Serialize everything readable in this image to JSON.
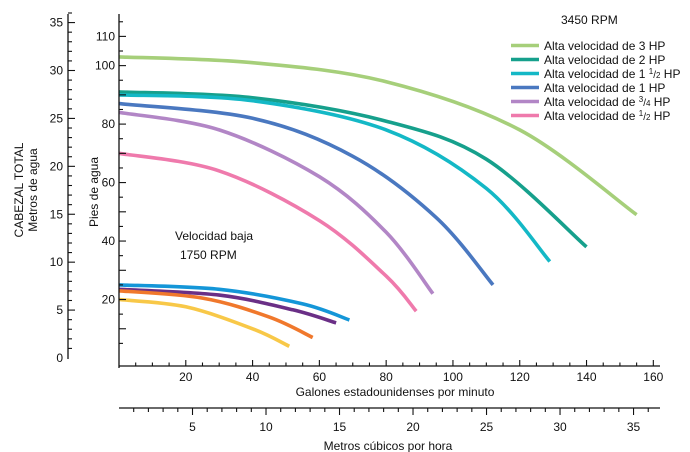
{
  "chart_data": {
    "type": "line",
    "annotations": {
      "rpm_high": "3450 RPM",
      "low_speed_line1": "Velocidad baja",
      "low_speed_line2": "1750 RPM"
    },
    "axes": {
      "x_gpm": {
        "label": "Galones estadounidenses por minuto",
        "range": [
          0,
          162
        ],
        "ticks": [
          {
            "value": 20,
            "label": "20"
          },
          {
            "value": 40,
            "label": "40"
          },
          {
            "value": 60,
            "label": "60"
          },
          {
            "value": 80,
            "label": "80"
          },
          {
            "value": 100,
            "label": "100"
          },
          {
            "value": 120,
            "label": "120"
          },
          {
            "value": 140,
            "label": "140"
          },
          {
            "value": 160,
            "label": "160"
          }
        ]
      },
      "x_m3h": {
        "label": "Metros cúbicos por hora",
        "range": [
          0,
          36.8
        ],
        "ticks": [
          {
            "value": 5,
            "label": "5"
          },
          {
            "value": 10,
            "label": "10"
          },
          {
            "value": 15,
            "label": "15"
          },
          {
            "value": 20,
            "label": "20"
          },
          {
            "value": 25,
            "label": "25"
          },
          {
            "value": 30,
            "label": "30"
          },
          {
            "value": 35,
            "label": "35"
          }
        ]
      },
      "y_feet": {
        "label": "Pies de agua",
        "range": [
          0,
          118
        ],
        "ticks": [
          {
            "value": 20,
            "label": "20"
          },
          {
            "value": 40,
            "label": "40"
          },
          {
            "value": 60,
            "label": "60"
          },
          {
            "value": 80,
            "label": "80"
          },
          {
            "value": 100,
            "label": "100"
          },
          {
            "value": 110,
            "label": "110"
          }
        ]
      },
      "y_meters": {
        "label_line1": "CABEZAL TOTAL",
        "label_line2": "Metros de agua",
        "range": [
          0,
          36
        ],
        "ticks": [
          {
            "value": 0,
            "label": "0"
          },
          {
            "value": 5,
            "label": "5"
          },
          {
            "value": 10,
            "label": "10"
          },
          {
            "value": 15,
            "label": "15"
          },
          {
            "value": 20,
            "label": "20"
          },
          {
            "value": 25,
            "label": "25"
          },
          {
            "value": 30,
            "label": "30"
          },
          {
            "value": 35,
            "label": "35"
          }
        ]
      }
    },
    "legend_position": "top-right",
    "series": [
      {
        "name": "Alta velocidad de 3 HP",
        "legend": {
          "prefix": "Alta velocidad de 3 HP"
        },
        "color": "#a6cf7a",
        "points": [
          [
            0,
            103
          ],
          [
            40,
            101
          ],
          [
            80,
            94.5
          ],
          [
            120,
            78
          ],
          [
            155,
            49
          ]
        ]
      },
      {
        "name": "Alta velocidad de 2 HP",
        "legend": {
          "prefix": "Alta velocidad de 2 HP"
        },
        "color": "#16a08c",
        "points": [
          [
            0,
            91
          ],
          [
            40,
            89
          ],
          [
            80,
            81
          ],
          [
            110,
            68
          ],
          [
            140,
            38
          ]
        ]
      },
      {
        "name": "Alta velocidad de 1 1/2 HP",
        "legend": {
          "prefix": "Alta velocidad de 1 ",
          "num": "1",
          "den": "2",
          "suffix": " HP"
        },
        "color": "#14b8c6",
        "points": [
          [
            0,
            90
          ],
          [
            40,
            88
          ],
          [
            80,
            78
          ],
          [
            110,
            58
          ],
          [
            129,
            33
          ]
        ]
      },
      {
        "name": "Alta velocidad de 1 HP",
        "legend": {
          "prefix": "Alta velocidad de 1 HP"
        },
        "color": "#4a78c0",
        "points": [
          [
            0,
            87
          ],
          [
            40,
            82
          ],
          [
            70,
            69
          ],
          [
            95,
            48
          ],
          [
            112,
            25
          ]
        ]
      },
      {
        "name": "Alta velocidad de 3/4 HP",
        "legend": {
          "prefix": "Alta velocidad de ",
          "num": "3",
          "den": "4",
          "suffix": " HP"
        },
        "color": "#b286c6",
        "points": [
          [
            0,
            84
          ],
          [
            30,
            78
          ],
          [
            60,
            62
          ],
          [
            80,
            43
          ],
          [
            94,
            22
          ]
        ]
      },
      {
        "name": "Alta velocidad de 1/2 HP",
        "legend": {
          "prefix": "Alta velocidad de ",
          "num": "1",
          "den": "2",
          "suffix": " HP"
        },
        "color": "#ef7aac",
        "points": [
          [
            0,
            70
          ],
          [
            30,
            64
          ],
          [
            60,
            47
          ],
          [
            80,
            28
          ],
          [
            89,
            16
          ]
        ]
      },
      {
        "color": "#1496d8",
        "points": [
          [
            0,
            25
          ],
          [
            30,
            23.5
          ],
          [
            55,
            18.5
          ],
          [
            69,
            13
          ]
        ]
      },
      {
        "color": "#6a2f86",
        "points": [
          [
            0,
            23.5
          ],
          [
            30,
            21.5
          ],
          [
            52,
            16.5
          ],
          [
            65,
            12
          ]
        ]
      },
      {
        "color": "#f0782c",
        "points": [
          [
            0,
            23
          ],
          [
            25,
            20.5
          ],
          [
            45,
            14
          ],
          [
            58,
            7
          ]
        ]
      },
      {
        "color": "#f8c848",
        "points": [
          [
            0,
            20
          ],
          [
            20,
            17.5
          ],
          [
            40,
            10
          ],
          [
            51,
            4
          ]
        ]
      }
    ]
  }
}
